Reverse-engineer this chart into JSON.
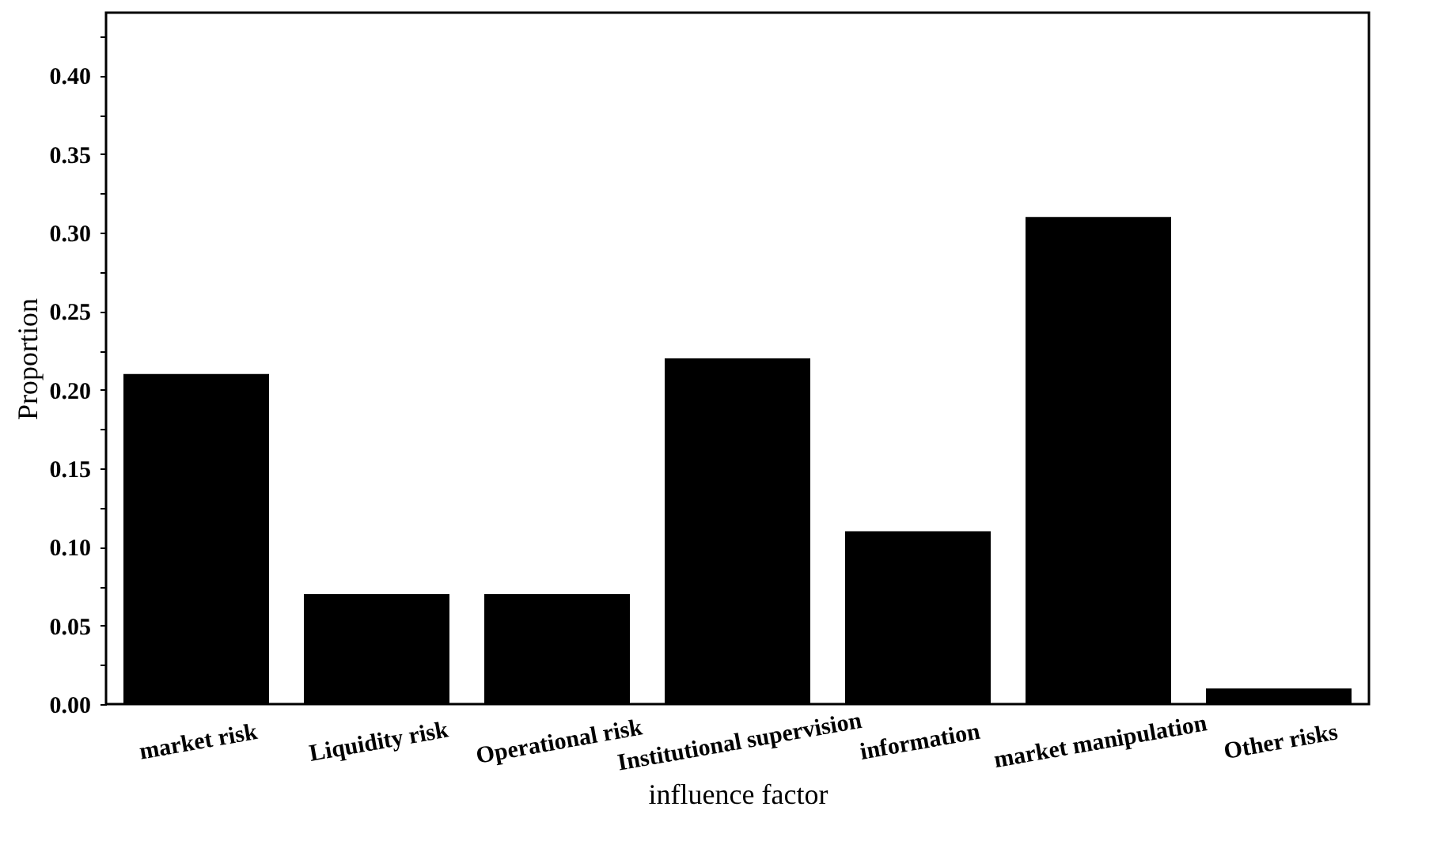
{
  "chart_data": {
    "type": "bar",
    "xlabel": "influence factor",
    "ylabel": "Proportion",
    "categories": [
      "market risk",
      "Liquidity risk",
      "Operational risk",
      "Institutional supervision",
      "information",
      "market manipulation",
      "Other risks"
    ],
    "values": [
      0.21,
      0.07,
      0.07,
      0.22,
      0.11,
      0.31,
      0.01
    ],
    "color": "#000000",
    "ylim": [
      0,
      0.44
    ],
    "yticks": [
      {
        "value": 0,
        "label": "0.00"
      },
      {
        "value": 0.025,
        "label": null
      },
      {
        "value": 0.05,
        "label": "0.05"
      },
      {
        "value": 0.075,
        "label": null
      },
      {
        "value": 0.1,
        "label": "0.10"
      },
      {
        "value": 0.125,
        "label": null
      },
      {
        "value": 0.15,
        "label": "0.15"
      },
      {
        "value": 0.175,
        "label": null
      },
      {
        "value": 0.2,
        "label": "0.20"
      },
      {
        "value": 0.225,
        "label": null
      },
      {
        "value": 0.25,
        "label": "0.25"
      },
      {
        "value": 0.275,
        "label": null
      },
      {
        "value": 0.3,
        "label": "0.30"
      },
      {
        "value": 0.325,
        "label": null
      },
      {
        "value": 0.35,
        "label": "0.35"
      },
      {
        "value": 0.375,
        "label": null
      },
      {
        "value": 0.4,
        "label": "0.40"
      },
      {
        "value": 0.425,
        "label": null
      }
    ],
    "grid": false
  }
}
